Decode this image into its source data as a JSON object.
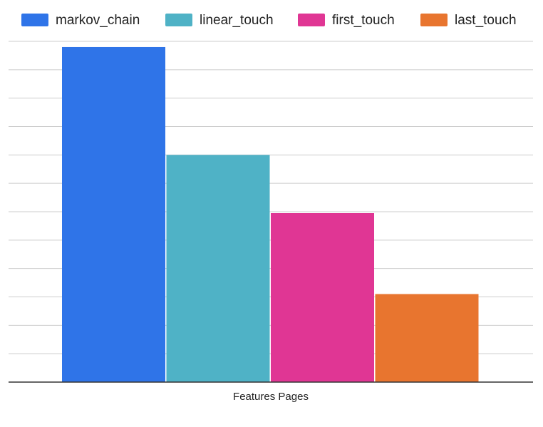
{
  "chart_data": {
    "type": "bar",
    "categories": [
      "Features Pages"
    ],
    "series": [
      {
        "name": "markov_chain",
        "values": [
          11.8
        ],
        "color": "#2f74e8"
      },
      {
        "name": "linear_touch",
        "values": [
          8.0
        ],
        "color": "#4fb2c6"
      },
      {
        "name": "first_touch",
        "values": [
          5.95
        ],
        "color": "#e03694"
      },
      {
        "name": "last_touch",
        "values": [
          3.1
        ],
        "color": "#e8752f"
      }
    ],
    "ylim": [
      0,
      12
    ],
    "grid": true,
    "legend_position": "top"
  }
}
